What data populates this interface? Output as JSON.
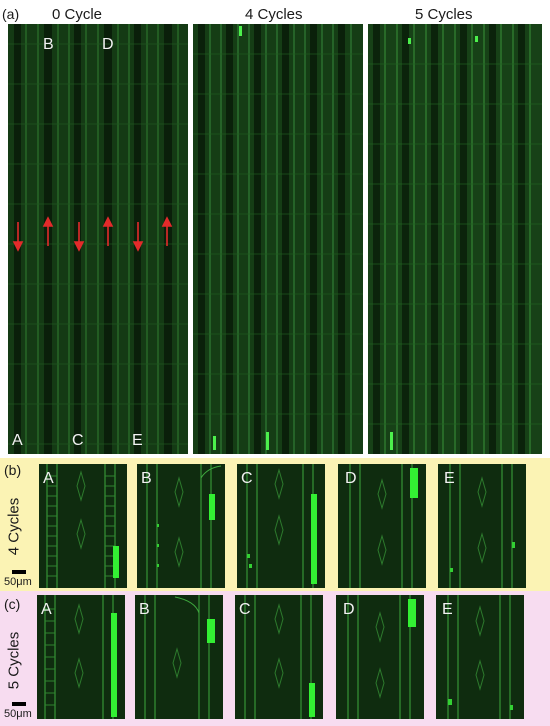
{
  "panel_a": {
    "label": "(a)",
    "titles": [
      "0 Cycle",
      "4 Cycles",
      "5 Cycles"
    ],
    "channel_labels_top": [
      "B",
      "D"
    ],
    "channel_labels_bottom": [
      "A",
      "C",
      "E"
    ]
  },
  "panel_b": {
    "label": "(b)",
    "row_label": "4 Cycles",
    "tiles": [
      "A",
      "B",
      "C",
      "D",
      "E"
    ],
    "scale_label": "50μm",
    "band_color": "#fbf3b4"
  },
  "panel_c": {
    "label": "(c)",
    "row_label": "5 Cycles",
    "tiles": [
      "A",
      "B",
      "C",
      "D",
      "E"
    ],
    "scale_label": "50μm",
    "band_color": "#f7dcf0"
  },
  "colors": {
    "tissue_dark": "#0d2a0d",
    "fluorescence": "#22e022",
    "arrow": "#e32b2b"
  }
}
